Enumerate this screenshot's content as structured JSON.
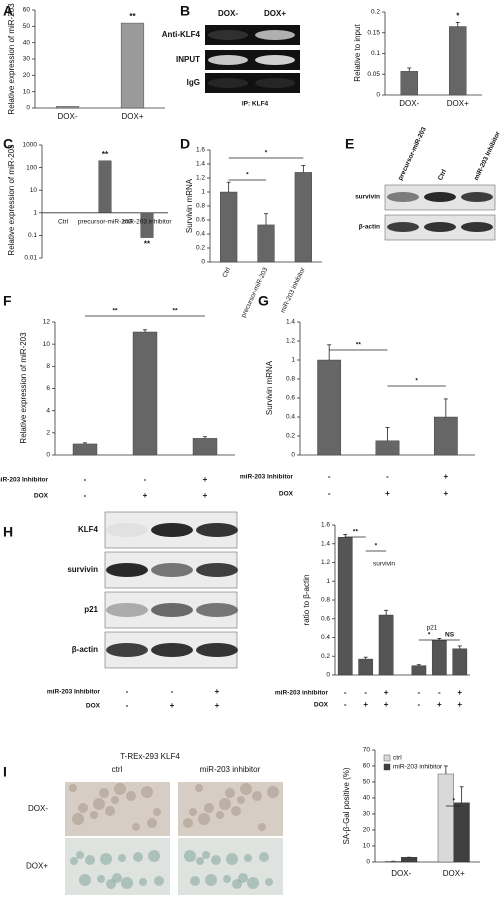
{
  "chart_data": [
    {
      "label": "A",
      "type": "bar",
      "y_label": "Relative expression of miR-203",
      "categories": [
        "DOX-",
        "DOX+"
      ],
      "values": [
        1,
        52
      ],
      "color": "#9a9a9a",
      "ylim": [
        0,
        60
      ],
      "yticks": [
        0,
        10,
        20,
        30,
        40,
        50,
        60
      ],
      "annotations": [
        "**"
      ]
    },
    {
      "type": "bar",
      "y_label": "Relative to input",
      "categories": [
        "DOX-",
        "DOX+"
      ],
      "values": [
        0.057,
        0.165
      ],
      "errors": [
        0.008,
        0.01
      ],
      "color": "#666666",
      "ylim": [
        0,
        0.2
      ],
      "yticks": [
        0,
        0.05,
        0.1,
        0.15,
        0.2
      ],
      "annotations": [
        "*"
      ]
    },
    {
      "label": "C",
      "type": "bar",
      "log": true,
      "y_label": "Relative expression of miR-203",
      "categories": [
        "Ctrl",
        "precursor-miR-203",
        "miR-203 inhibitor"
      ],
      "values": [
        1,
        200,
        0.08
      ],
      "color": "#666666",
      "ylim": [
        0.01,
        1000
      ],
      "yticks": [
        0.01,
        0.1,
        1,
        10,
        100,
        1000
      ],
      "annotations": [
        "**",
        "**"
      ]
    },
    {
      "label": "D",
      "type": "bar",
      "y_label": "Survivin mRNA",
      "categories": [
        "Ctrl",
        "precursor-miR-203",
        "miR-203 inhibitor"
      ],
      "values": [
        1,
        0.53,
        1.28
      ],
      "errors": [
        0.14,
        0.16,
        0.1
      ],
      "color": "#666666",
      "ylim": [
        0,
        1.6
      ],
      "yticks": [
        0,
        0.2,
        0.4,
        0.6,
        0.8,
        1,
        1.2,
        1.4,
        1.6
      ],
      "annotations": [
        "*",
        "*"
      ]
    },
    {
      "label": "F",
      "type": "bar",
      "y_label": "Relative expression of miR-203",
      "values": [
        1,
        11.1,
        1.5
      ],
      "errors": [
        0.1,
        0.2,
        0.15
      ],
      "color": "#666666",
      "ylim": [
        0,
        12
      ],
      "yticks": [
        0,
        2,
        4,
        6,
        8,
        10,
        12
      ],
      "annotations": [
        "**",
        "**"
      ],
      "conditions": [
        {
          "name": "miR-203 Inhibitor",
          "values": [
            "-",
            "-",
            "+"
          ]
        },
        {
          "name": "DOX",
          "values": [
            "-",
            "+",
            "+"
          ]
        }
      ]
    },
    {
      "label": "G",
      "type": "bar",
      "y_label": "Survivin mRNA",
      "values": [
        1,
        0.15,
        0.4
      ],
      "errors": [
        0.16,
        0.14,
        0.19
      ],
      "color": "#666666",
      "ylim": [
        0,
        1.4
      ],
      "yticks": [
        0,
        0.2,
        0.4,
        0.6,
        0.8,
        1,
        1.2,
        1.4
      ],
      "annotations": [
        "**",
        "*"
      ],
      "conditions": [
        {
          "name": "miR-203 Inhibitor",
          "values": [
            "-",
            "-",
            "+"
          ]
        },
        {
          "name": "DOX",
          "values": [
            "-",
            "+",
            "+"
          ]
        }
      ]
    },
    {
      "type": "bar",
      "y_label": "ratio to β-actin",
      "series": [
        {
          "name": "survivin",
          "color": "#555555",
          "values": [
            1.47,
            0.17,
            0.64
          ],
          "errors": [
            0.03,
            0.02,
            0.05
          ]
        },
        {
          "name": "p21",
          "color": "#555555",
          "values": [
            0.1,
            0.37,
            0.28
          ],
          "errors": [
            0.01,
            0.02,
            0.03
          ]
        }
      ],
      "ylim": [
        0,
        1.6
      ],
      "yticks": [
        0,
        0.2,
        0.4,
        0.6,
        0.8,
        1,
        1.2,
        1.4,
        1.6
      ],
      "annotations": [
        "**",
        "*",
        "*",
        "NS"
      ],
      "conditions": [
        {
          "name": "miR-203 inhibitor",
          "values": [
            "-",
            "-",
            "+",
            "-",
            "-",
            "+"
          ]
        },
        {
          "name": "DOX",
          "values": [
            "-",
            "+",
            "+",
            "-",
            "+",
            "+"
          ]
        }
      ]
    },
    {
      "type": "bar",
      "y_label": "SA-β-Gal positive (%)",
      "categories": [
        "DOX-",
        "DOX+"
      ],
      "series": [
        {
          "name": "ctrl",
          "color": "#d9d9d9",
          "values": [
            0.5,
            55
          ],
          "errors": [
            0,
            5
          ]
        },
        {
          "name": "miR-203 inhibitor",
          "color": "#404040",
          "values": [
            3,
            37
          ],
          "errors": [
            0,
            10
          ]
        }
      ],
      "ylim": [
        0,
        70
      ],
      "yticks": [
        0,
        10,
        20,
        30,
        40,
        50,
        60,
        70
      ],
      "legend": "upper left",
      "annotations": [
        "*"
      ]
    }
  ],
  "figures": [
    {
      "label": "B",
      "lanes": [
        "DOX-",
        "DOX+"
      ],
      "rows": [
        "Anti-KLF4",
        "INPUT",
        "IgG"
      ],
      "footer": "IP: KLF4"
    },
    {
      "label": "E",
      "lanes": [
        "precursor-miR-203",
        "Ctrl",
        "miR-203 Inhibitor"
      ],
      "rows": [
        "survivin",
        "β-actin"
      ]
    },
    {
      "label": "H",
      "rows": [
        "KLF4",
        "survivin",
        "p21",
        "β-actin"
      ],
      "conditions": [
        {
          "name": "miR-203 Inhibitor",
          "values": [
            "-",
            "-",
            "+"
          ]
        },
        {
          "name": "DOX",
          "values": [
            "-",
            "+",
            "+"
          ]
        }
      ]
    },
    {
      "label": "I",
      "title": "T-REx-293 KLF4",
      "lanes": [
        "ctrl",
        "miR-203 inhibitor"
      ],
      "rows": [
        "DOX-",
        "DOX+"
      ]
    }
  ]
}
